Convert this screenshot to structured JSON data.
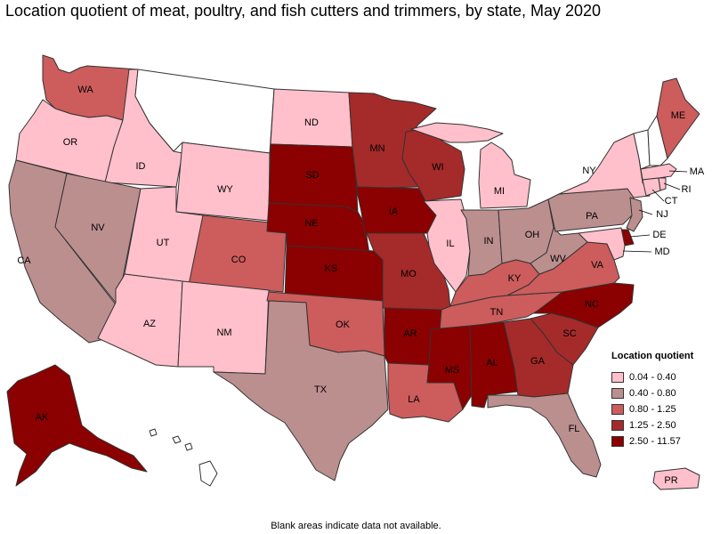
{
  "title": "Location quotient of meat, poultry, and fish cutters and trimmers, by state, May 2020",
  "footnote": "Blank areas indicate data not available.",
  "legend": {
    "title": "Location quotient",
    "bins": [
      {
        "label": "0.04 - 0.40",
        "color": "#ffc0cb"
      },
      {
        "label": "0.40 - 0.80",
        "color": "#bc8f8f"
      },
      {
        "label": "0.80 - 1.25",
        "color": "#cd5c5c"
      },
      {
        "label": "1.25 - 2.50",
        "color": "#a52a2a"
      },
      {
        "label": "2.50 - 11.57",
        "color": "#8b0000"
      }
    ]
  },
  "no_data_color": "#ffffff",
  "states": {
    "WA": 2,
    "OR": 0,
    "ID": 0,
    "MT": -1,
    "WY": 0,
    "ND": 0,
    "SD": 4,
    "MN": 3,
    "WI": 3,
    "MI": 0,
    "CA": 1,
    "NV": 1,
    "UT": 0,
    "AZ": 0,
    "NM": 0,
    "CO": 2,
    "NE": 4,
    "IA": 4,
    "KS": 4,
    "MO": 3,
    "IL": 0,
    "IN": 1,
    "OH": 1,
    "KY": 2,
    "WV": 1,
    "PA": 1,
    "NY": 0,
    "VT": -1,
    "NH": -1,
    "ME": 2,
    "MA": 0,
    "RI": 0,
    "CT": 0,
    "NJ": 1,
    "DE": 4,
    "MD": 0,
    "VA": 2,
    "NC": 4,
    "SC": 3,
    "GA": 3,
    "FL": 1,
    "AL": 4,
    "MS": 4,
    "TN": 2,
    "AR": 4,
    "LA": 2,
    "OK": 2,
    "TX": 1,
    "AK": 4,
    "HI": -1,
    "PR": 0
  }
}
